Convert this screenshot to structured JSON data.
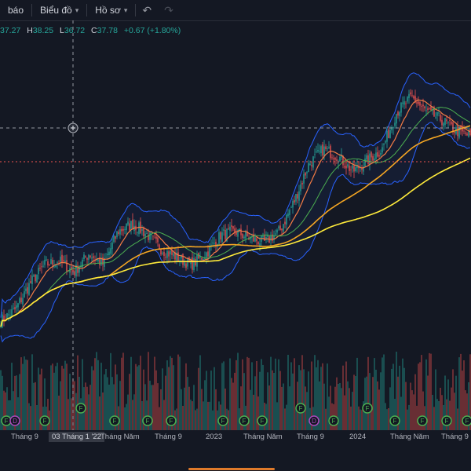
{
  "toolbar": {
    "item1": "báo",
    "item2": "Biểu đồ",
    "item3": "Hồ sơ",
    "undo_icon": "undo-icon",
    "redo_icon": "redo-icon"
  },
  "ohlc": {
    "o_value": "37.27",
    "h_label": "H",
    "h_value": "38.25",
    "l_label": "L",
    "l_value": "36.72",
    "c_label": "C",
    "c_value": "37.78",
    "change": "+0.67 (+1.80%)"
  },
  "colors": {
    "background": "#141823",
    "up": "#26a69a",
    "down": "#ef5350",
    "bollinger": "#2962ff",
    "ma_orange": "#f57c45",
    "ma_green": "#4caf50",
    "ma_gold1": "#f5a623",
    "ma_gold2": "#ffeb3b"
  },
  "xaxis": {
    "labels": [
      "Tháng 9",
      "03 Tháng 1 '22",
      "Tháng Năm",
      "Tháng 9",
      "2023",
      "Tháng Năm",
      "Tháng 9",
      "2024",
      "Tháng Năm",
      "Tháng 9"
    ],
    "selected": "03 Tháng 1 '22"
  },
  "chart_data": {
    "type": "candlestick",
    "x_start": "2021-07",
    "x_end": "2024-10",
    "approx_price_path": [
      13.0,
      14.5,
      18.0,
      20.5,
      21.0,
      19.5,
      22.0,
      20.5,
      25.0,
      26.0,
      24.5,
      22.5,
      21.5,
      20.5,
      22.0,
      24.5,
      25.0,
      24.0,
      23.5,
      25.0,
      29.0,
      34.0,
      36.0,
      35.0,
      33.0,
      34.5,
      36.0,
      41.0,
      43.0,
      41.0,
      40.0,
      38.5,
      37.78
    ],
    "indicators": [
      "Bollinger Bands",
      "MA (orange)",
      "MA (green)",
      "MA (gold)",
      "MA (yellow)"
    ],
    "volume": true,
    "event_markers": [
      "F",
      "D",
      "F",
      "F",
      "F",
      "F",
      "F",
      "F",
      "F",
      "F",
      "F",
      "D",
      "F",
      "F",
      "F",
      "F",
      "F",
      "F"
    ]
  }
}
